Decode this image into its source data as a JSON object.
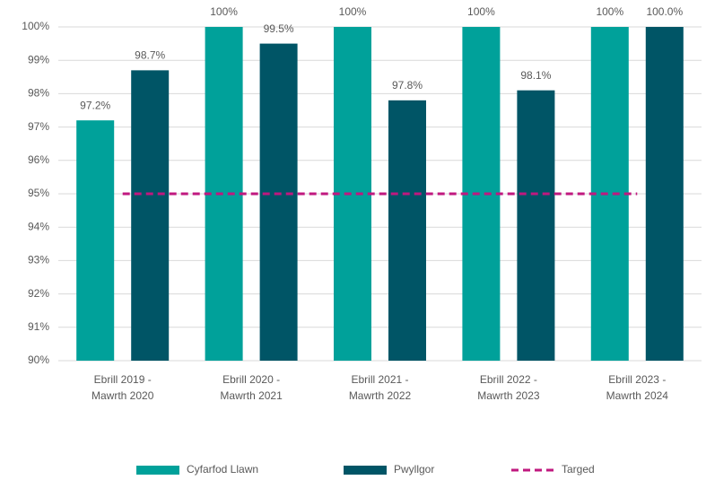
{
  "chart_data": {
    "type": "bar",
    "categories": [
      "Ebrill 2019 - Mawrth 2020",
      "Ebrill 2020 - Mawrth 2021",
      "Ebrill 2021 - Mawrth 2022",
      "Ebrill 2022 - Mawrth 2023",
      "Ebrill 2023 - Mawrth 2024"
    ],
    "series": [
      {
        "name": "Cyfarfod Llawn",
        "color": "#00a19a",
        "values": [
          97.2,
          100,
          100,
          100,
          100
        ],
        "value_labels": [
          "97.2%",
          "100%",
          "100%",
          "100%",
          "100%"
        ]
      },
      {
        "name": "Pwyllgor",
        "color": "#005566",
        "values": [
          98.7,
          99.5,
          97.8,
          98.1,
          100
        ],
        "value_labels": [
          "98.7%",
          "99.5%",
          "97.8%",
          "98.1%",
          "100.0%"
        ]
      },
      {
        "name": "Targed",
        "type": "line",
        "color": "#c0187f",
        "values": [
          95,
          95,
          95,
          95,
          95
        ]
      }
    ],
    "ylim": [
      90,
      100
    ],
    "yticks": [
      {
        "value": 90,
        "label": "90%"
      },
      {
        "value": 91,
        "label": "91%"
      },
      {
        "value": 92,
        "label": "92%"
      },
      {
        "value": 93,
        "label": "93%"
      },
      {
        "value": 94,
        "label": "94%"
      },
      {
        "value": 95,
        "label": "95%"
      },
      {
        "value": 96,
        "label": "96%"
      },
      {
        "value": 97,
        "label": "97%"
      },
      {
        "value": 98,
        "label": "98%"
      },
      {
        "value": 99,
        "label": "99%"
      },
      {
        "value": 100,
        "label": "100%"
      }
    ],
    "grid": true,
    "legend": "bottom"
  }
}
